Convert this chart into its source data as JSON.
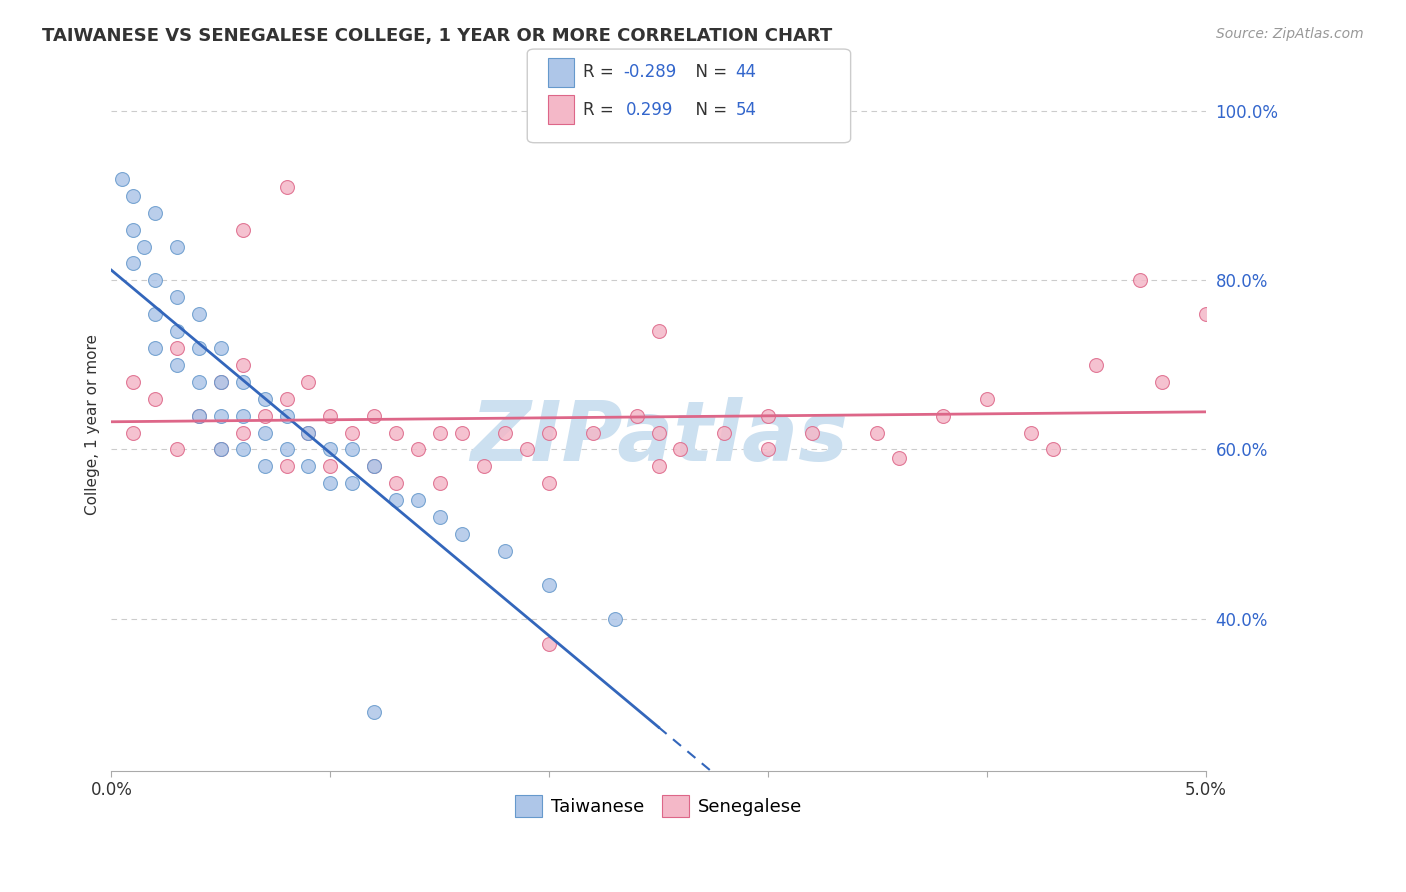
{
  "title": "TAIWANESE VS SENEGALESE COLLEGE, 1 YEAR OR MORE CORRELATION CHART",
  "source_text": "Source: ZipAtlas.com",
  "ylabel_label": "College, 1 year or more",
  "xlim": [
    0.0,
    0.05
  ],
  "ylim": [
    0.22,
    1.04
  ],
  "xticks": [
    0.0,
    0.01,
    0.02,
    0.03,
    0.04,
    0.05
  ],
  "xticklabels": [
    "0.0%",
    "",
    "",
    "",
    "",
    "5.0%"
  ],
  "ytick_positions": [
    0.4,
    0.6,
    0.8,
    1.0
  ],
  "yticklabels": [
    "40.0%",
    "60.0%",
    "80.0%",
    "100.0%"
  ],
  "taiwan_color": "#aec6e8",
  "taiwan_edge": "#6699cc",
  "senegal_color": "#f4b8c8",
  "senegal_edge": "#dd6688",
  "taiwan_R": -0.289,
  "taiwan_N": 44,
  "senegal_R": 0.299,
  "senegal_N": 54,
  "taiwan_line_color": "#3366bb",
  "senegal_line_color": "#dd6688",
  "grid_color": "#cccccc",
  "background_color": "#ffffff",
  "watermark_color": "#cce0f0",
  "legend_color": "#3366cc",
  "taiwan_scatter_x": [
    0.0005,
    0.001,
    0.001,
    0.001,
    0.0015,
    0.002,
    0.002,
    0.002,
    0.002,
    0.003,
    0.003,
    0.003,
    0.003,
    0.004,
    0.004,
    0.004,
    0.004,
    0.005,
    0.005,
    0.005,
    0.005,
    0.006,
    0.006,
    0.006,
    0.007,
    0.007,
    0.007,
    0.008,
    0.008,
    0.009,
    0.009,
    0.01,
    0.01,
    0.011,
    0.011,
    0.012,
    0.013,
    0.014,
    0.015,
    0.016,
    0.018,
    0.02,
    0.023,
    0.012
  ],
  "taiwan_scatter_y": [
    0.92,
    0.9,
    0.86,
    0.82,
    0.84,
    0.88,
    0.8,
    0.76,
    0.72,
    0.84,
    0.78,
    0.74,
    0.7,
    0.76,
    0.72,
    0.68,
    0.64,
    0.72,
    0.68,
    0.64,
    0.6,
    0.68,
    0.64,
    0.6,
    0.66,
    0.62,
    0.58,
    0.64,
    0.6,
    0.62,
    0.58,
    0.6,
    0.56,
    0.6,
    0.56,
    0.58,
    0.54,
    0.54,
    0.52,
    0.5,
    0.48,
    0.44,
    0.4,
    0.29
  ],
  "senegal_scatter_x": [
    0.001,
    0.001,
    0.002,
    0.003,
    0.003,
    0.004,
    0.005,
    0.005,
    0.006,
    0.006,
    0.007,
    0.008,
    0.008,
    0.009,
    0.009,
    0.01,
    0.01,
    0.011,
    0.012,
    0.012,
    0.013,
    0.013,
    0.014,
    0.015,
    0.015,
    0.016,
    0.017,
    0.018,
    0.019,
    0.02,
    0.02,
    0.022,
    0.024,
    0.025,
    0.025,
    0.026,
    0.028,
    0.03,
    0.03,
    0.032,
    0.035,
    0.038,
    0.04,
    0.042,
    0.043,
    0.045,
    0.047,
    0.048,
    0.02,
    0.006,
    0.008,
    0.025,
    0.036,
    0.05
  ],
  "senegal_scatter_y": [
    0.68,
    0.62,
    0.66,
    0.72,
    0.6,
    0.64,
    0.68,
    0.6,
    0.7,
    0.62,
    0.64,
    0.66,
    0.58,
    0.68,
    0.62,
    0.64,
    0.58,
    0.62,
    0.64,
    0.58,
    0.62,
    0.56,
    0.6,
    0.62,
    0.56,
    0.62,
    0.58,
    0.62,
    0.6,
    0.62,
    0.56,
    0.62,
    0.64,
    0.62,
    0.58,
    0.6,
    0.62,
    0.6,
    0.64,
    0.62,
    0.62,
    0.64,
    0.66,
    0.62,
    0.6,
    0.7,
    0.8,
    0.68,
    0.37,
    0.86,
    0.91,
    0.74,
    0.59,
    0.76
  ]
}
